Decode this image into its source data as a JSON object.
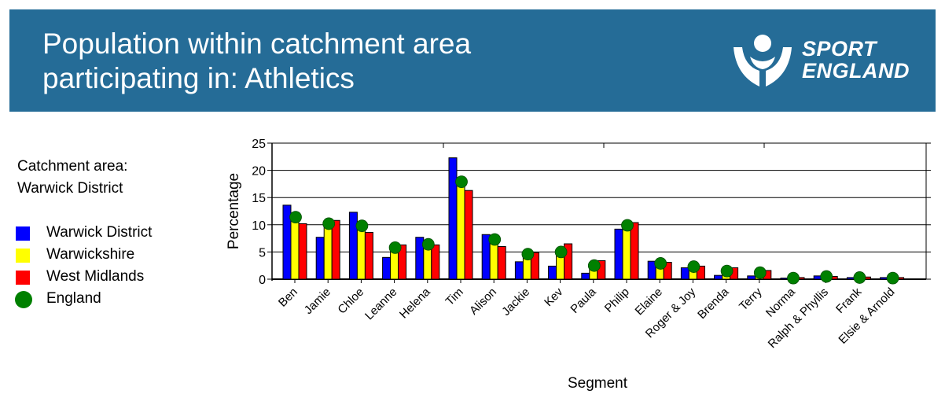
{
  "header": {
    "title_line1": "Population within catchment area",
    "title_line2": "participating in: Athletics",
    "logo_line1": "SPORT",
    "logo_line2": "ENGLAND"
  },
  "catchment": {
    "line1": "Catchment  area:",
    "line2": "Warwick  District"
  },
  "colors": {
    "banner": "#256c97",
    "warwick_district": "#0000ff",
    "warwickshire": "#ffff00",
    "west_midlands": "#ff0000",
    "england": "#008000"
  },
  "chart_data": {
    "type": "bar",
    "xlabel": "Segment",
    "ylabel": "Percentage",
    "ylim": [
      0,
      25
    ],
    "yticks": [
      0,
      5,
      10,
      15,
      20,
      25
    ],
    "grid": true,
    "legend_position": "left",
    "categories": [
      "Ben",
      "Jamie",
      "Chloe",
      "Leanne",
      "Helena",
      "Tim",
      "Alison",
      "Jackie",
      "Kev",
      "Paula",
      "Philip",
      "Elaine",
      "Roger & Joy",
      "Brenda",
      "Terry",
      "Norma",
      "Ralph & Phyllis",
      "Frank",
      "Elsie & Arnold"
    ],
    "series": [
      {
        "name": "Warwick District",
        "type": "bar",
        "color": "#0000ff",
        "values": [
          13.6,
          7.7,
          12.3,
          4.0,
          7.7,
          22.3,
          8.2,
          3.2,
          2.4,
          1.1,
          9.2,
          3.3,
          2.1,
          0.7,
          0.6,
          0.2,
          0.6,
          0.3,
          0.3
        ]
      },
      {
        "name": "Warwickshire",
        "type": "bar",
        "color": "#ffff00",
        "values": [
          10.8,
          10.0,
          9.8,
          5.8,
          6.5,
          17.8,
          7.3,
          4.6,
          5.0,
          2.5,
          10.0,
          2.9,
          2.3,
          1.5,
          1.1,
          0.2,
          0.5,
          0.3,
          0.2
        ]
      },
      {
        "name": "West Midlands",
        "type": "bar",
        "color": "#ff0000",
        "values": [
          10.2,
          10.8,
          8.6,
          6.3,
          6.3,
          16.3,
          6.0,
          4.9,
          6.5,
          3.4,
          10.4,
          3.1,
          2.4,
          2.1,
          1.6,
          0.3,
          0.5,
          0.4,
          0.3
        ]
      },
      {
        "name": "England",
        "type": "marker",
        "color": "#008000",
        "values": [
          11.4,
          10.2,
          9.8,
          5.8,
          6.4,
          17.9,
          7.3,
          4.6,
          5.0,
          2.5,
          9.9,
          2.9,
          2.3,
          1.5,
          1.2,
          0.2,
          0.5,
          0.3,
          0.2
        ]
      }
    ]
  }
}
